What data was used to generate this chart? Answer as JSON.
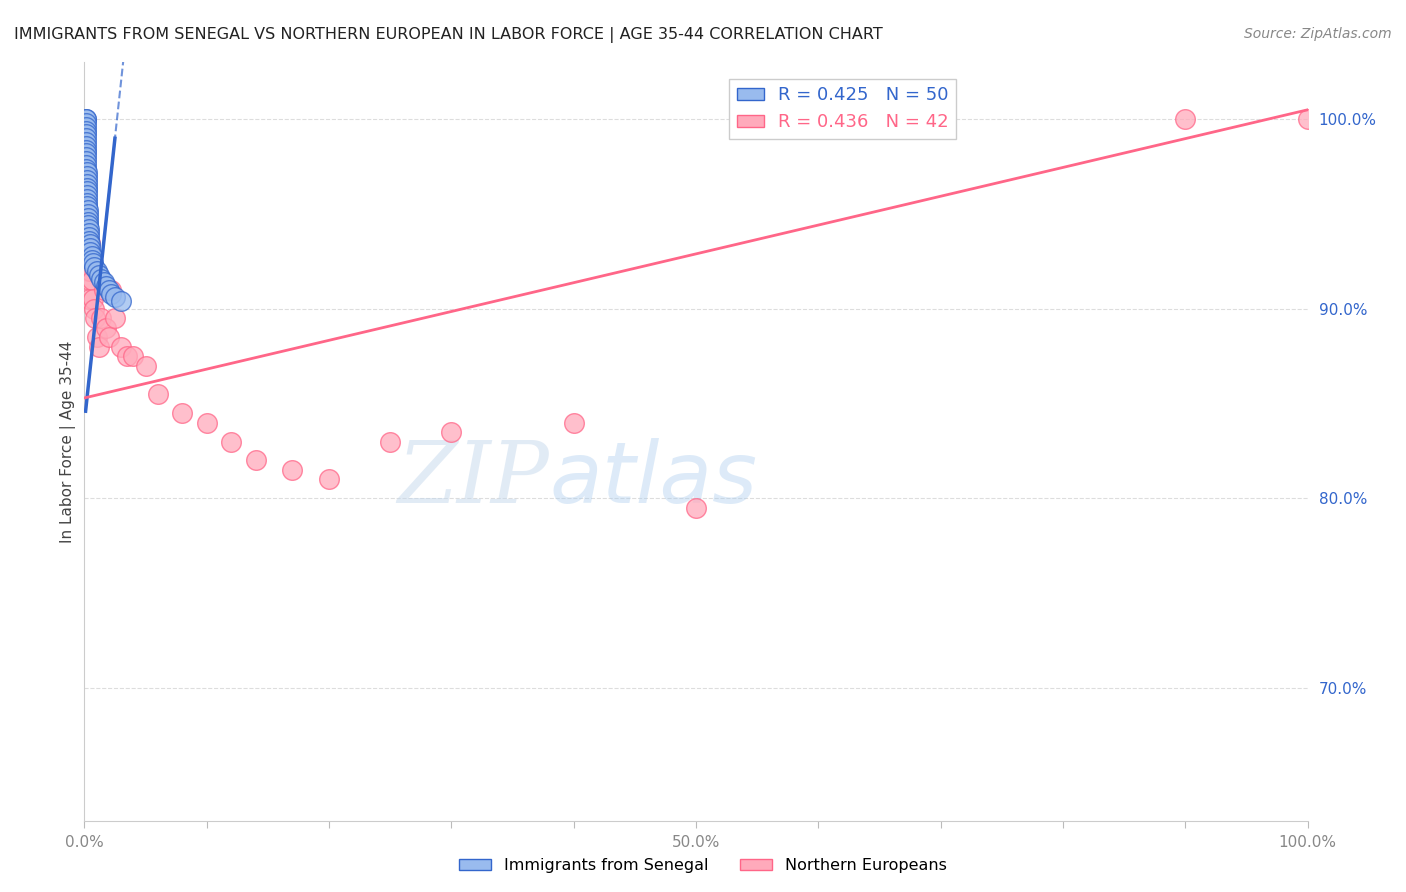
{
  "title": "IMMIGRANTS FROM SENEGAL VS NORTHERN EUROPEAN IN LABOR FORCE | AGE 35-44 CORRELATION CHART",
  "source": "Source: ZipAtlas.com",
  "ylabel": "In Labor Force | Age 35-44",
  "xlim": [
    0.0,
    1.0
  ],
  "ylim": [
    0.63,
    1.03
  ],
  "legend_blue_label": "R = 0.425   N = 50",
  "legend_pink_label": "R = 0.436   N = 42",
  "bottom_legend_blue": "Immigrants from Senegal",
  "bottom_legend_pink": "Northern Europeans",
  "blue_scatter_color": "#99BBEE",
  "pink_scatter_color": "#FFAABB",
  "blue_line_color": "#3366CC",
  "pink_line_color": "#FF6688",
  "background_color": "#FFFFFF",
  "grid_color": "#DDDDDD",
  "watermark_zip": "ZIP",
  "watermark_atlas": "atlas",
  "senegal_x": [
    0.001,
    0.001,
    0.001,
    0.001,
    0.001,
    0.001,
    0.001,
    0.001,
    0.001,
    0.001,
    0.001,
    0.001,
    0.001,
    0.001,
    0.001,
    0.002,
    0.002,
    0.002,
    0.002,
    0.002,
    0.002,
    0.002,
    0.002,
    0.002,
    0.002,
    0.003,
    0.003,
    0.003,
    0.003,
    0.003,
    0.004,
    0.004,
    0.004,
    0.004,
    0.005,
    0.005,
    0.005,
    0.006,
    0.006,
    0.007,
    0.008,
    0.01,
    0.012,
    0.014,
    0.016,
    0.018,
    0.02,
    0.022,
    0.025,
    0.03
  ],
  "senegal_y": [
    1.0,
    1.0,
    0.998,
    0.996,
    0.994,
    0.992,
    0.99,
    0.988,
    0.986,
    0.984,
    0.982,
    0.98,
    0.978,
    0.976,
    0.974,
    0.972,
    0.97,
    0.968,
    0.966,
    0.964,
    0.962,
    0.96,
    0.958,
    0.956,
    0.954,
    0.952,
    0.95,
    0.948,
    0.946,
    0.944,
    0.942,
    0.94,
    0.938,
    0.936,
    0.934,
    0.932,
    0.93,
    0.928,
    0.926,
    0.924,
    0.922,
    0.92,
    0.918,
    0.916,
    0.914,
    0.912,
    0.91,
    0.908,
    0.906,
    0.904
  ],
  "northern_x": [
    0.001,
    0.001,
    0.001,
    0.002,
    0.002,
    0.002,
    0.003,
    0.003,
    0.003,
    0.004,
    0.004,
    0.005,
    0.005,
    0.006,
    0.007,
    0.008,
    0.009,
    0.01,
    0.012,
    0.014,
    0.016,
    0.018,
    0.02,
    0.022,
    0.025,
    0.03,
    0.035,
    0.04,
    0.05,
    0.06,
    0.08,
    0.1,
    0.12,
    0.14,
    0.17,
    0.2,
    0.25,
    0.3,
    0.4,
    0.5,
    0.9,
    1.0
  ],
  "northern_y": [
    0.97,
    0.96,
    0.95,
    0.945,
    0.935,
    0.925,
    0.94,
    0.93,
    0.92,
    0.915,
    0.905,
    0.935,
    0.92,
    0.915,
    0.905,
    0.9,
    0.895,
    0.885,
    0.88,
    0.895,
    0.91,
    0.89,
    0.885,
    0.91,
    0.895,
    0.88,
    0.875,
    0.875,
    0.87,
    0.855,
    0.845,
    0.84,
    0.83,
    0.82,
    0.815,
    0.81,
    0.83,
    0.835,
    0.84,
    0.795,
    1.0,
    1.0
  ],
  "blue_trend_x0": 0.0,
  "blue_trend_x1": 0.03,
  "blue_trend_y0": 0.84,
  "blue_trend_y1": 1.02,
  "pink_trend_x0": 0.0,
  "pink_trend_x1": 1.0,
  "pink_trend_y0": 0.853,
  "pink_trend_y1": 1.005
}
